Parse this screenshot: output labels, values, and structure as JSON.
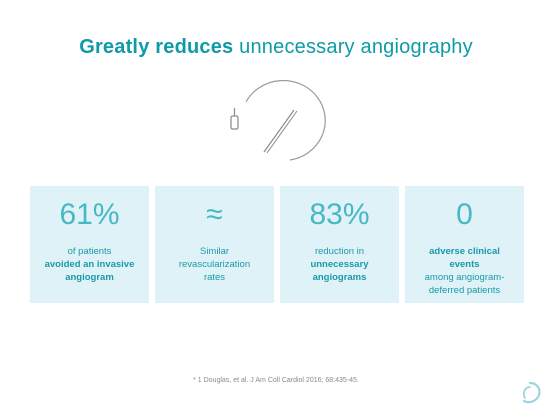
{
  "title": {
    "bold": "Greatly reduces",
    "rest": "unnecessary angiography"
  },
  "cards": [
    {
      "big": "61%",
      "desc_pre": "of patients",
      "desc_bold": "avoided an invasive angiogram",
      "desc_post": ""
    },
    {
      "big": "≈",
      "desc_pre": "Similar revascularization rates",
      "desc_bold": "",
      "desc_post": ""
    },
    {
      "big": "83%",
      "desc_pre": "reduction in",
      "desc_bold": "unnecessary angiograms",
      "desc_post": ""
    },
    {
      "big": "0",
      "desc_pre": "",
      "desc_bold": "adverse clinical events",
      "desc_post": "among angiogram-deferred patients"
    }
  ],
  "footnote": "* 1 Douglas, et al. J Am Coll Cardiol 2016; 68:435-45.",
  "icons": {
    "illustration": "catheter-guidewire-icon",
    "logo": "heartflow-logo-icon"
  },
  "colors": {
    "accent": "#0e9aa7",
    "card_bg": "#dff2f7",
    "big_number": "#48b8c4"
  }
}
